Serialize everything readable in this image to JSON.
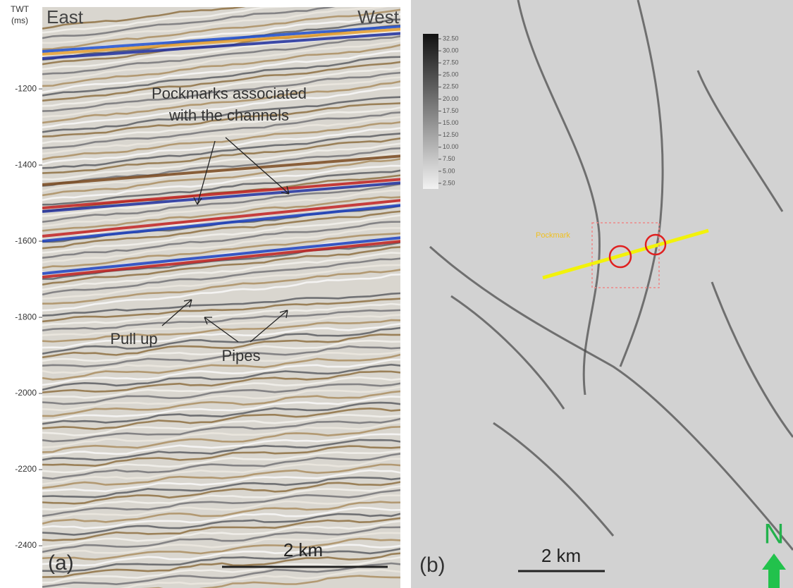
{
  "panel_a": {
    "axis_label_top": "TWT",
    "axis_label_unit": "(ms)",
    "ylim": [
      -985,
      -2511
    ],
    "yticks": [
      -1200,
      -1400,
      -1600,
      -1800,
      -2000,
      -2200,
      -2400
    ],
    "left_label": "East",
    "right_label": "West",
    "annotation_pockmarks_line1": "Pockmarks associated",
    "annotation_pockmarks_line2": "with the channels",
    "annotation_pull_up": "Pull up",
    "annotation_pipes": "Pipes",
    "scale_label": "2 km",
    "panel_label": "(a)"
  },
  "panel_b": {
    "colorbar_labels": [
      "32.50",
      "30.00",
      "27.50",
      "25.00",
      "22.50",
      "20.00",
      "17.50",
      "15.00",
      "12.50",
      "10.00",
      "7.50",
      "5.00",
      "2.50"
    ],
    "line_label": "Pockmark",
    "scale_label": "2 km",
    "panel_label": "(b)",
    "north_label": "N"
  }
}
